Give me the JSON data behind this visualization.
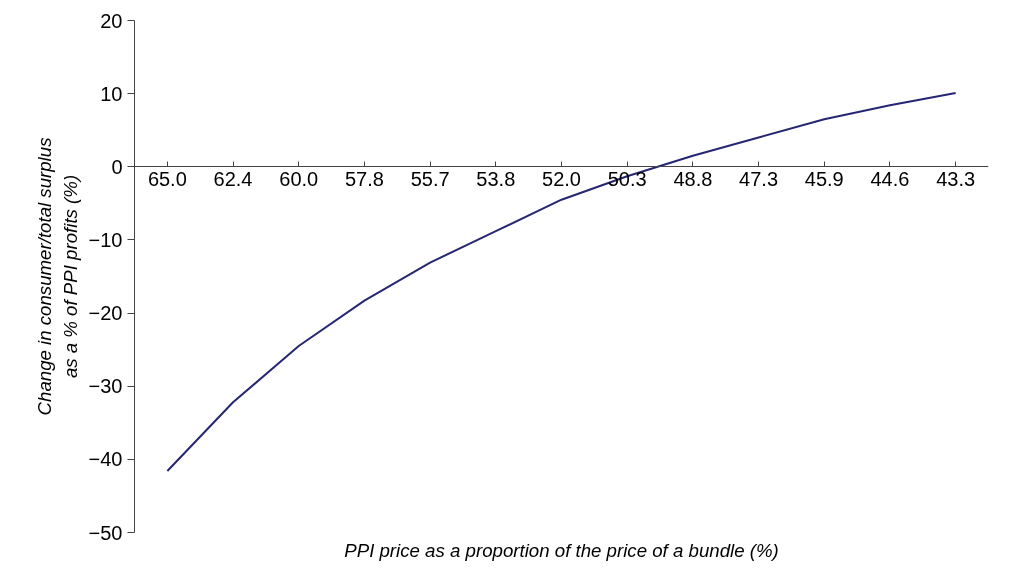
{
  "chart_data": {
    "type": "line",
    "xlabel": "PPI price as a proportion of the price of a bundle (%)",
    "ylabel": "Change in consumer/total surplus\nas a % of PPI profits (%)",
    "categories": [
      "65.0",
      "62.4",
      "60.0",
      "57.8",
      "55.7",
      "53.8",
      "52.0",
      "50.3",
      "48.8",
      "47.3",
      "45.9",
      "44.6",
      "43.3"
    ],
    "series": [
      {
        "color": "#262673",
        "values": [
          -41.6,
          -32.2,
          -24.5,
          -18.3,
          -13.1,
          -8.8,
          -4.5,
          -1.3,
          1.5,
          4.0,
          6.5,
          8.4,
          10.1
        ]
      }
    ],
    "ylim": [
      -50,
      20
    ],
    "yticks": [
      {
        "value": -50,
        "label": "−50"
      },
      {
        "value": -40,
        "label": "−40"
      },
      {
        "value": -30,
        "label": "−30"
      },
      {
        "value": -20,
        "label": "−20"
      },
      {
        "value": -10,
        "label": "−10"
      },
      0,
      10,
      20
    ],
    "grid": false,
    "marker": "none",
    "line_style": "solid"
  }
}
